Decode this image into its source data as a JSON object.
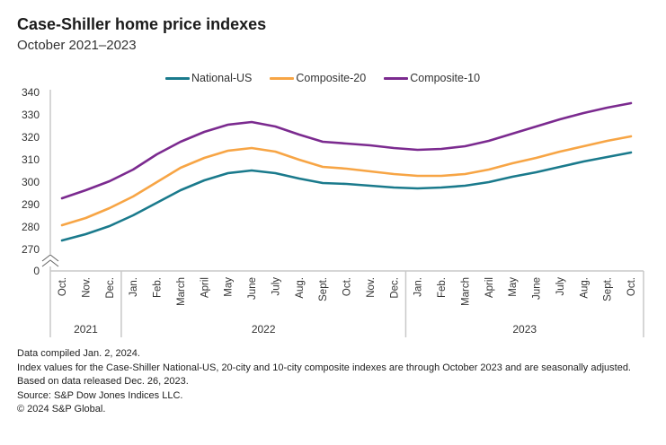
{
  "chart_data": {
    "type": "line",
    "title": "Case-Shiller home price indexes",
    "subtitle": "October 2021–2023",
    "xlabel": "",
    "ylabel": "",
    "ylim": [
      270,
      340
    ],
    "y_axis_break": true,
    "y_ticks": [
      340,
      330,
      320,
      310,
      300,
      290,
      280,
      270,
      0
    ],
    "grid": false,
    "legend_position": "top-center",
    "categories": [
      "Oct.",
      "Nov.",
      "Dec.",
      "Jan.",
      "Feb.",
      "March",
      "April",
      "May",
      "June",
      "July",
      "Aug.",
      "Sept.",
      "Oct.",
      "Nov.",
      "Dec.",
      "Jan.",
      "Feb.",
      "March",
      "April",
      "May",
      "June",
      "July",
      "Aug.",
      "Sept.",
      "Oct."
    ],
    "year_groups": [
      {
        "label": "2021",
        "count": 3
      },
      {
        "label": "2022",
        "count": 12
      },
      {
        "label": "2023",
        "count": 10
      }
    ],
    "series": [
      {
        "name": "National-US",
        "color": "#1a7a8c",
        "values": [
          274.0,
          276.8,
          280.4,
          285.2,
          290.8,
          296.4,
          300.8,
          304.0,
          305.2,
          304.0,
          301.6,
          299.6,
          299.2,
          298.4,
          297.6,
          297.2,
          297.6,
          298.4,
          300.0,
          302.4,
          304.4,
          306.8,
          309.2,
          311.2,
          313.2
        ]
      },
      {
        "name": "Composite-20",
        "color": "#f7a545",
        "values": [
          280.8,
          284.0,
          288.4,
          293.6,
          300.0,
          306.4,
          310.8,
          314.0,
          315.2,
          313.6,
          310.0,
          306.8,
          306.0,
          304.8,
          303.6,
          302.8,
          302.8,
          303.6,
          305.6,
          308.4,
          310.8,
          313.6,
          316.0,
          318.4,
          320.4
        ]
      },
      {
        "name": "Composite-10",
        "color": "#7b2a8f",
        "values": [
          292.8,
          296.4,
          300.4,
          305.6,
          312.4,
          318.0,
          322.4,
          325.6,
          326.8,
          324.8,
          321.2,
          318.0,
          317.2,
          316.4,
          315.2,
          314.4,
          314.8,
          316.0,
          318.4,
          321.6,
          324.8,
          328.0,
          330.8,
          333.2,
          335.2
        ]
      }
    ]
  },
  "notes": [
    "Data compiled Jan. 2, 2024.",
    "Index values for the Case-Shiller National-US, 20-city and 10-city composite indexes are through October 2023 and are seasonally adjusted.",
    "Based on data released Dec. 26, 2023.",
    "Source: S&P Dow Jones Indices LLC.",
    "© 2024 S&P Global."
  ]
}
